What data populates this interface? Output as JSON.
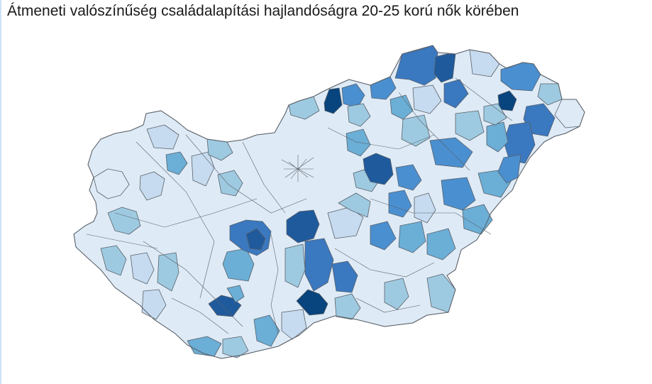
{
  "title": "Átmeneti valószínűség családalapítási hajlandóságra 20-25 korú nők körében",
  "palette": {
    "level_1": "#deebf7",
    "level_2": "#c6dbef",
    "level_3": "#9ecae1",
    "level_4": "#6baed6",
    "level_5": "#4a8fd0",
    "level_6": "#3a78c0",
    "level_7": "#1f5a9c",
    "level_8": "#08447e",
    "border": "#5a6068"
  }
}
